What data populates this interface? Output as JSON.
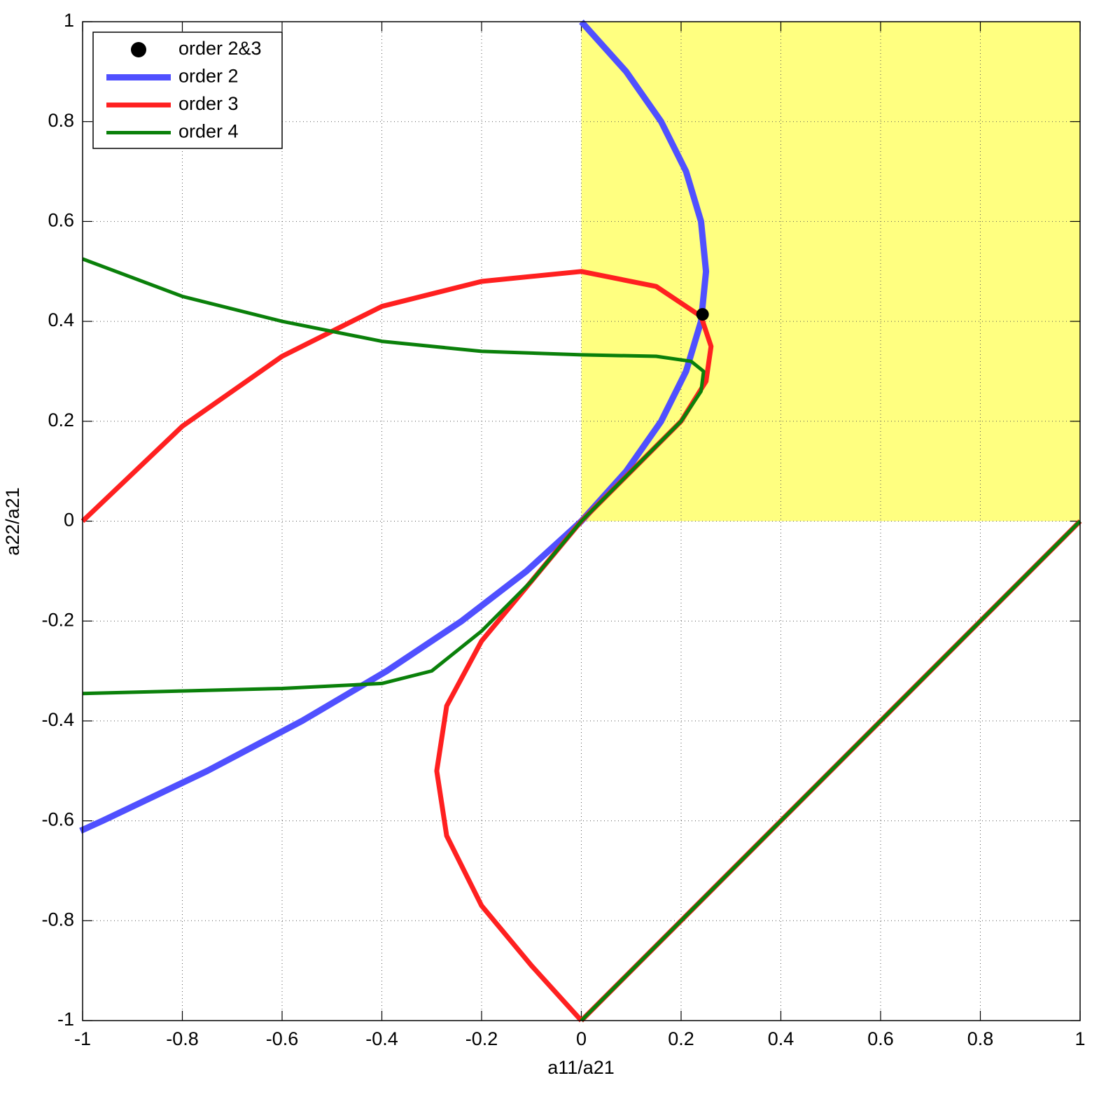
{
  "chart_data": {
    "type": "line",
    "x_label": "a11/a21",
    "y_label": "a22/a21",
    "xlim": [
      -1,
      1
    ],
    "ylim": [
      -1,
      1
    ],
    "xticks": [
      -1,
      -0.8,
      -0.6,
      -0.4,
      -0.2,
      0,
      0.2,
      0.4,
      0.6,
      0.8,
      1
    ],
    "yticks": [
      -1,
      -0.8,
      -0.6,
      -0.4,
      -0.2,
      0,
      0.2,
      0.4,
      0.6,
      0.8,
      1
    ],
    "grid": true,
    "legend": "upper left",
    "region": {
      "x": [
        0,
        1
      ],
      "y": [
        0,
        1
      ],
      "color": "#ffff80"
    },
    "series": [
      {
        "name": "order 2&3",
        "type": "scatter",
        "color": "#000000",
        "x": [
          0.243
        ],
        "values": [
          0.414
        ]
      },
      {
        "name": "order 2",
        "type": "line",
        "color": "#5050ff",
        "x": [
          0,
          0.09,
          0.16,
          0.21,
          0.24,
          0.25,
          0.24,
          0.21,
          0.16,
          0.09,
          0,
          -0.11,
          -0.24,
          -0.39,
          -0.56,
          -0.75,
          -0.96,
          -1.004
        ],
        "values": [
          1,
          0.9,
          0.8,
          0.7,
          0.6,
          0.5,
          0.4,
          0.3,
          0.2,
          0.1,
          0,
          -0.1,
          -0.2,
          -0.3,
          -0.4,
          -0.5,
          -0.6,
          -0.62
        ]
      },
      {
        "name": "order 3",
        "type": "line",
        "color": "#ff2020",
        "x": [
          -1,
          -0.8,
          -0.6,
          -0.4,
          -0.2,
          0,
          0.15,
          0.24,
          0.26,
          0.25,
          0.2,
          0.1,
          0,
          -0.1,
          -0.2,
          -0.27,
          -0.29,
          -0.27,
          -0.2,
          -0.1,
          0,
          null,
          0,
          1
        ],
        "values": [
          0,
          0.19,
          0.33,
          0.43,
          0.48,
          0.5,
          0.47,
          0.41,
          0.35,
          0.28,
          0.2,
          0.1,
          0,
          -0.12,
          -0.24,
          -0.37,
          -0.5,
          -0.63,
          -0.77,
          -0.89,
          -1,
          null,
          -1,
          0
        ]
      },
      {
        "name": "order 4",
        "type": "line",
        "color": "#0a800a",
        "x": [
          -1,
          -0.8,
          -0.6,
          -0.4,
          -0.2,
          0,
          0.15,
          0.22,
          0.245,
          0.24,
          0.2,
          0.1,
          0,
          -0.1,
          -0.2,
          -0.3,
          -0.4,
          -0.6,
          -0.8,
          -1,
          null,
          0,
          1
        ],
        "values": [
          0.525,
          0.45,
          0.4,
          0.36,
          0.34,
          0.333,
          0.33,
          0.32,
          0.3,
          0.26,
          0.2,
          0.1,
          0,
          -0.12,
          -0.22,
          -0.3,
          -0.325,
          -0.335,
          -0.34,
          -0.345,
          null,
          -1,
          0
        ]
      }
    ]
  }
}
